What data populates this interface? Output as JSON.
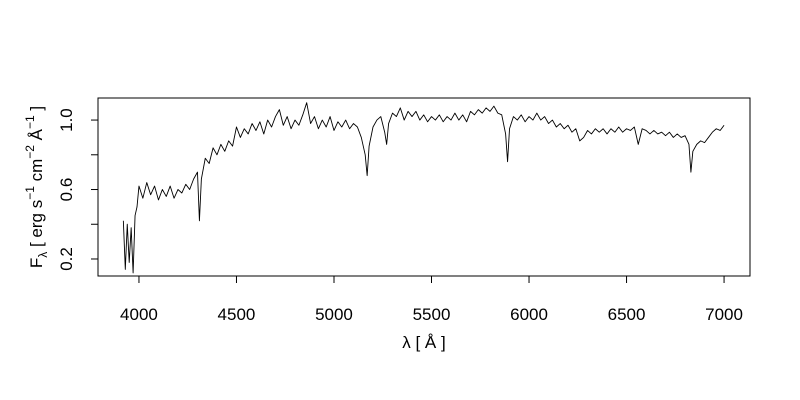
{
  "chart_data": {
    "type": "line",
    "xlabel": "λ [ Å ]",
    "ylabel": [
      "F",
      "λ",
      " [ erg s",
      "−1",
      " cm",
      "−2",
      " Å",
      "−1",
      " ]"
    ],
    "color": "#000000",
    "xlim": [
      3790,
      7133
    ],
    "xticks": [
      4000,
      4500,
      5000,
      5500,
      6000,
      6500,
      7000
    ],
    "ylim": [
      0.102,
      1.127
    ],
    "yticks": [
      0.2,
      0.6,
      {
        "value": 1,
        "label": "1.0"
      }
    ],
    "yminor_ticks": [
      0.4,
      0.8
    ],
    "x": [
      3920,
      3930,
      3940,
      3950,
      3960,
      3970,
      3980,
      3990,
      4000,
      4020,
      4040,
      4060,
      4080,
      4100,
      4120,
      4140,
      4160,
      4180,
      4200,
      4220,
      4240,
      4260,
      4280,
      4300,
      4310,
      4320,
      4340,
      4360,
      4380,
      4400,
      4420,
      4440,
      4460,
      4480,
      4500,
      4520,
      4540,
      4560,
      4580,
      4600,
      4620,
      4640,
      4660,
      4680,
      4700,
      4720,
      4740,
      4760,
      4780,
      4800,
      4820,
      4840,
      4860,
      4880,
      4900,
      4920,
      4940,
      4960,
      4980,
      5000,
      5020,
      5040,
      5060,
      5080,
      5100,
      5120,
      5140,
      5160,
      5170,
      5180,
      5200,
      5220,
      5240,
      5260,
      5270,
      5280,
      5300,
      5320,
      5340,
      5360,
      5380,
      5400,
      5420,
      5440,
      5460,
      5480,
      5500,
      5520,
      5540,
      5560,
      5580,
      5600,
      5620,
      5640,
      5660,
      5680,
      5700,
      5720,
      5740,
      5760,
      5780,
      5800,
      5820,
      5840,
      5860,
      5880,
      5890,
      5900,
      5920,
      5940,
      5960,
      5980,
      6000,
      6020,
      6040,
      6060,
      6080,
      6100,
      6120,
      6140,
      6160,
      6180,
      6200,
      6220,
      6240,
      6260,
      6280,
      6300,
      6320,
      6340,
      6360,
      6380,
      6400,
      6420,
      6440,
      6460,
      6480,
      6500,
      6520,
      6540,
      6560,
      6580,
      6600,
      6620,
      6640,
      6660,
      6680,
      6700,
      6720,
      6740,
      6760,
      6780,
      6800,
      6820,
      6830,
      6840,
      6860,
      6880,
      6900,
      6920,
      6940,
      6960,
      6980,
      7000
    ],
    "values": [
      0.42,
      0.14,
      0.4,
      0.18,
      0.38,
      0.12,
      0.45,
      0.5,
      0.62,
      0.55,
      0.64,
      0.57,
      0.62,
      0.54,
      0.6,
      0.56,
      0.62,
      0.55,
      0.6,
      0.58,
      0.63,
      0.6,
      0.66,
      0.7,
      0.42,
      0.66,
      0.78,
      0.75,
      0.84,
      0.8,
      0.86,
      0.82,
      0.88,
      0.85,
      0.96,
      0.9,
      0.95,
      0.92,
      0.98,
      0.94,
      0.99,
      0.92,
      1.0,
      0.96,
      1.02,
      1.06,
      0.97,
      1.02,
      0.95,
      1.0,
      0.97,
      1.03,
      1.1,
      0.98,
      1.02,
      0.95,
      1.0,
      0.96,
      1.02,
      0.94,
      0.99,
      0.96,
      1.0,
      0.95,
      0.98,
      0.96,
      0.9,
      0.8,
      0.68,
      0.85,
      0.96,
      1.0,
      1.02,
      0.93,
      0.86,
      0.98,
      1.04,
      1.02,
      1.07,
      1.0,
      1.05,
      1.02,
      1.05,
      1.0,
      1.03,
      0.99,
      1.02,
      1.0,
      1.03,
      0.99,
      1.02,
      1.0,
      1.04,
      1.0,
      1.03,
      0.99,
      1.05,
      1.03,
      1.06,
      1.04,
      1.07,
      1.05,
      1.08,
      1.04,
      1.03,
      0.92,
      0.76,
      0.95,
      1.02,
      1.0,
      1.03,
      0.99,
      1.02,
      1.0,
      1.04,
      1.0,
      1.02,
      0.98,
      1.0,
      0.96,
      0.98,
      0.95,
      0.97,
      0.93,
      0.95,
      0.88,
      0.9,
      0.94,
      0.92,
      0.95,
      0.93,
      0.95,
      0.92,
      0.95,
      0.93,
      0.96,
      0.93,
      0.95,
      0.94,
      0.96,
      0.86,
      0.95,
      0.94,
      0.92,
      0.94,
      0.92,
      0.93,
      0.91,
      0.93,
      0.9,
      0.92,
      0.9,
      0.91,
      0.86,
      0.7,
      0.82,
      0.86,
      0.88,
      0.87,
      0.9,
      0.93,
      0.95,
      0.94,
      0.97
    ]
  }
}
